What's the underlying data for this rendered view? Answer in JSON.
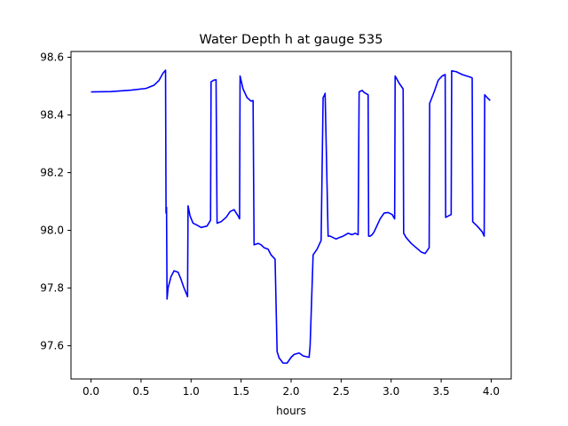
{
  "chart_data": {
    "type": "line",
    "title": "Water Depth h at gauge 535",
    "xlabel": "hours",
    "ylabel": "",
    "xlim": [
      -0.2,
      4.2
    ],
    "ylim": [
      97.485,
      98.62
    ],
    "xticks": [
      0.0,
      0.5,
      1.0,
      1.5,
      2.0,
      2.5,
      3.0,
      3.5,
      4.0
    ],
    "xtick_labels": [
      "0.0",
      "0.5",
      "1.0",
      "1.5",
      "2.0",
      "2.5",
      "3.0",
      "3.5",
      "4.0"
    ],
    "yticks": [
      97.6,
      97.8,
      98.0,
      98.2,
      98.4,
      98.6
    ],
    "ytick_labels": [
      "97.6",
      "97.8",
      "98.0",
      "98.2",
      "98.4",
      "98.6"
    ],
    "grid": false,
    "legend": null,
    "colors": {
      "line": "#0000ff",
      "axes": "#000000",
      "background": "#ffffff"
    },
    "series": [
      {
        "x": [
          0.0,
          0.2,
          0.4,
          0.55,
          0.63,
          0.68,
          0.72,
          0.745,
          0.75,
          0.755,
          0.76,
          0.765,
          0.77,
          0.8,
          0.83,
          0.87,
          0.9,
          0.93,
          0.96,
          0.965,
          0.97,
          0.99,
          1.02,
          1.06,
          1.1,
          1.16,
          1.195,
          1.2,
          1.23,
          1.25,
          1.26,
          1.3,
          1.35,
          1.39,
          1.43,
          1.47,
          1.485,
          1.49,
          1.52,
          1.56,
          1.6,
          1.62,
          1.63,
          1.67,
          1.7,
          1.73,
          1.77,
          1.8,
          1.84,
          1.86,
          1.88,
          1.92,
          1.96,
          2.0,
          2.03,
          2.08,
          2.12,
          2.18,
          2.19,
          2.22,
          2.26,
          2.3,
          2.32,
          2.335,
          2.34,
          2.37,
          2.39,
          2.42,
          2.45,
          2.48,
          2.52,
          2.57,
          2.61,
          2.64,
          2.67,
          2.68,
          2.71,
          2.73,
          2.77,
          2.775,
          2.79,
          2.81,
          2.83,
          2.85,
          2.89,
          2.93,
          2.97,
          3.01,
          3.035,
          3.04,
          3.08,
          3.12,
          3.125,
          3.15,
          3.2,
          3.25,
          3.3,
          3.34,
          3.36,
          3.38,
          3.385,
          3.43,
          3.47,
          3.51,
          3.54,
          3.545,
          3.6,
          3.605,
          3.65,
          3.71,
          3.8,
          3.81,
          3.815,
          3.86,
          3.91,
          3.93,
          3.935,
          3.96,
          3.99
        ],
        "y": [
          98.48,
          98.481,
          98.486,
          98.492,
          98.503,
          98.52,
          98.545,
          98.555,
          98.06,
          98.08,
          97.762,
          97.78,
          97.8,
          97.84,
          97.86,
          97.855,
          97.83,
          97.8,
          97.775,
          97.77,
          98.085,
          98.05,
          98.025,
          98.018,
          98.01,
          98.015,
          98.035,
          98.515,
          98.521,
          98.522,
          98.025,
          98.03,
          98.045,
          98.065,
          98.072,
          98.05,
          98.04,
          98.535,
          98.49,
          98.46,
          98.448,
          98.45,
          97.95,
          97.955,
          97.95,
          97.94,
          97.935,
          97.915,
          97.9,
          97.58,
          97.558,
          97.54,
          97.54,
          97.56,
          97.57,
          97.575,
          97.565,
          97.56,
          97.6,
          97.915,
          97.935,
          97.965,
          98.46,
          98.47,
          98.475,
          97.98,
          97.98,
          97.975,
          97.97,
          97.975,
          97.98,
          97.99,
          97.985,
          97.99,
          97.985,
          98.48,
          98.485,
          98.478,
          98.47,
          97.98,
          97.98,
          97.985,
          97.995,
          98.01,
          98.04,
          98.06,
          98.062,
          98.055,
          98.04,
          98.535,
          98.51,
          98.49,
          97.99,
          97.975,
          97.955,
          97.94,
          97.925,
          97.92,
          97.93,
          97.94,
          98.44,
          98.48,
          98.52,
          98.535,
          98.54,
          98.045,
          98.055,
          98.553,
          98.55,
          98.54,
          98.53,
          98.528,
          98.03,
          98.015,
          97.995,
          97.98,
          98.47,
          98.46,
          98.45
        ]
      }
    ]
  }
}
